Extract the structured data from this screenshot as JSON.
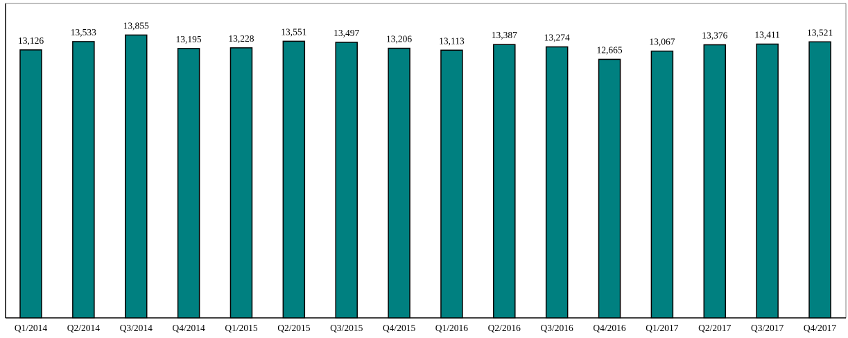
{
  "chart_data": {
    "type": "bar",
    "categories": [
      "Q1/2014",
      "Q2/2014",
      "Q3/2014",
      "Q4/2014",
      "Q1/2015",
      "Q2/2015",
      "Q3/2015",
      "Q4/2015",
      "Q1/2016",
      "Q2/2016",
      "Q3/2016",
      "Q4/2016",
      "Q1/2017",
      "Q2/2017",
      "Q3/2017",
      "Q4/2017"
    ],
    "values": [
      13126,
      13533,
      13855,
      13195,
      13228,
      13551,
      13497,
      13206,
      13113,
      13387,
      13274,
      12665,
      13067,
      13376,
      13411,
      13521
    ],
    "value_labels": [
      "13,126",
      "13,533",
      "13,855",
      "13,195",
      "13,228",
      "13,551",
      "13,497",
      "13,206",
      "13,113",
      "13,387",
      "13,274",
      "12,665",
      "13,067",
      "13,376",
      "13,411",
      "13,521"
    ],
    "title": "",
    "xlabel": "",
    "ylabel": "",
    "ylim": [
      0,
      15400
    ],
    "grid": false,
    "legend": "none",
    "colors": {
      "bar_fill": "#008080",
      "bar_stroke": "#000000",
      "frame": "#808080"
    }
  }
}
